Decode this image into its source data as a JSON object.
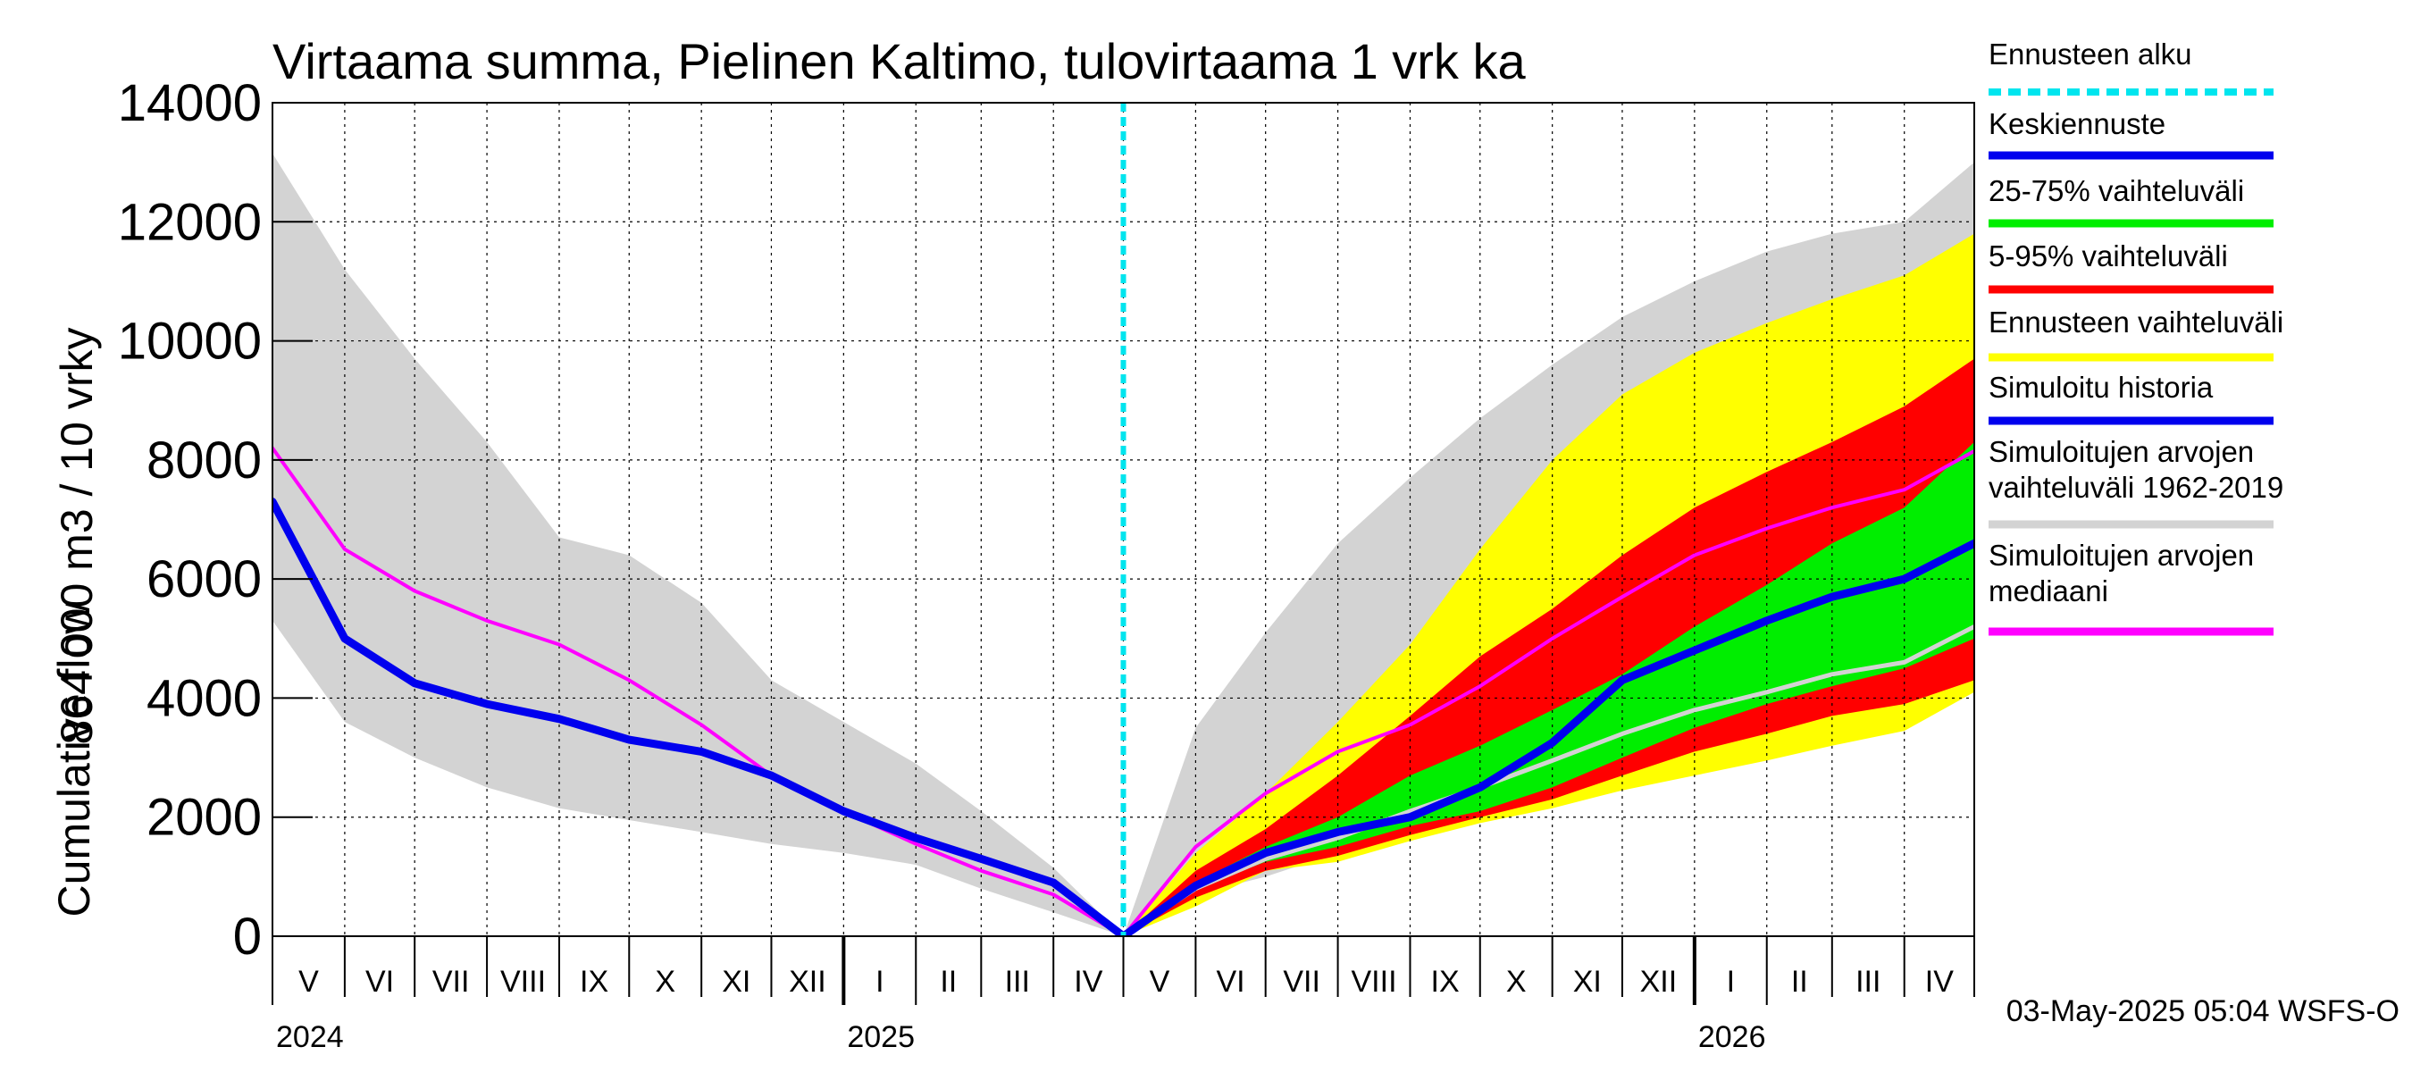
{
  "chart_data": {
    "type": "area",
    "title": "Virtaama summa, Pielinen Kaltimo, tulovirtaama 1 vrk ka",
    "ylabel_line1": "864 000 m3 / 10 vrky",
    "ylabel_line2": "Cumulative flow",
    "ylim": [
      0,
      14000
    ],
    "yticks": [
      0,
      2000,
      4000,
      6000,
      8000,
      10000,
      12000,
      14000
    ],
    "ytick_labels": [
      "0",
      "2000",
      "4000",
      "6000",
      "8000",
      "10000",
      "12000",
      "14000"
    ],
    "x_start": "2024-05-01",
    "x_end": "2026-05-01",
    "forecast_start": "2025-05-01",
    "grid": true,
    "legend_position": "right",
    "months": [
      {
        "label": "V",
        "start": "2024-05-01",
        "end": "2024-06-01"
      },
      {
        "label": "VI",
        "start": "2024-06-01",
        "end": "2024-07-01"
      },
      {
        "label": "VII",
        "start": "2024-07-01",
        "end": "2024-08-01"
      },
      {
        "label": "VIII",
        "start": "2024-08-01",
        "end": "2024-09-01"
      },
      {
        "label": "IX",
        "start": "2024-09-01",
        "end": "2024-10-01"
      },
      {
        "label": "X",
        "start": "2024-10-01",
        "end": "2024-11-01"
      },
      {
        "label": "XI",
        "start": "2024-11-01",
        "end": "2024-12-01"
      },
      {
        "label": "XII",
        "start": "2024-12-01",
        "end": "2025-01-01"
      },
      {
        "label": "I",
        "start": "2025-01-01",
        "end": "2025-02-01"
      },
      {
        "label": "II",
        "start": "2025-02-01",
        "end": "2025-03-01"
      },
      {
        "label": "III",
        "start": "2025-03-01",
        "end": "2025-04-01"
      },
      {
        "label": "IV",
        "start": "2025-04-01",
        "end": "2025-05-01"
      },
      {
        "label": "V",
        "start": "2025-05-01",
        "end": "2025-06-01"
      },
      {
        "label": "VI",
        "start": "2025-06-01",
        "end": "2025-07-01"
      },
      {
        "label": "VII",
        "start": "2025-07-01",
        "end": "2025-08-01"
      },
      {
        "label": "VIII",
        "start": "2025-08-01",
        "end": "2025-09-01"
      },
      {
        "label": "IX",
        "start": "2025-09-01",
        "end": "2025-10-01"
      },
      {
        "label": "X",
        "start": "2025-10-01",
        "end": "2025-11-01"
      },
      {
        "label": "XI",
        "start": "2025-11-01",
        "end": "2025-12-01"
      },
      {
        "label": "XII",
        "start": "2025-12-01",
        "end": "2026-01-01"
      },
      {
        "label": "I",
        "start": "2026-01-01",
        "end": "2026-02-01"
      },
      {
        "label": "II",
        "start": "2026-02-01",
        "end": "2026-03-01"
      },
      {
        "label": "III",
        "start": "2026-03-01",
        "end": "2026-04-01"
      },
      {
        "label": "IV",
        "start": "2026-04-01",
        "end": "2026-05-01"
      }
    ],
    "years": [
      {
        "label": "2024",
        "date": "2024-05-01"
      },
      {
        "label": "2025",
        "date": "2025-01-01"
      },
      {
        "label": "2026",
        "date": "2026-01-01"
      }
    ],
    "bands": [
      {
        "name": "Simuloitujen arvojen vaihteluväli 1962-2019",
        "color": "#d3d3d3",
        "x": [
          "2024-05-01",
          "2024-06-01",
          "2024-07-01",
          "2024-08-01",
          "2024-09-01",
          "2024-10-01",
          "2024-11-01",
          "2024-12-01",
          "2025-01-01",
          "2025-02-01",
          "2025-03-01",
          "2025-04-01",
          "2025-05-01",
          "2025-06-01",
          "2025-07-01",
          "2025-08-01",
          "2025-09-01",
          "2025-10-01",
          "2025-11-01",
          "2025-12-01",
          "2026-01-01",
          "2026-02-01",
          "2026-03-01",
          "2026-04-01",
          "2026-05-01"
        ],
        "upper": [
          13150,
          11200,
          9700,
          8300,
          6700,
          6400,
          5600,
          4300,
          3600,
          2900,
          2100,
          1150,
          0,
          3500,
          5100,
          6600,
          7700,
          8700,
          9600,
          10400,
          11000,
          11500,
          11800,
          12000,
          13000
        ],
        "lower": [
          5300,
          3600,
          3000,
          2500,
          2150,
          1950,
          1750,
          1550,
          1400,
          1200,
          800,
          400,
          0,
          700,
          1000,
          1400,
          1750,
          2100,
          2400,
          2700,
          3000,
          3300,
          3500,
          3800,
          4200
        ]
      },
      {
        "name": "Ennusteen vaihteluväli",
        "color": "#ffff00",
        "x": [
          "2025-05-01",
          "2025-06-01",
          "2025-07-01",
          "2025-08-01",
          "2025-09-01",
          "2025-10-01",
          "2025-11-01",
          "2025-12-01",
          "2026-01-01",
          "2026-02-01",
          "2026-03-01",
          "2026-04-01",
          "2026-05-01"
        ],
        "upper": [
          0,
          1400,
          2400,
          3600,
          4900,
          6500,
          8000,
          9100,
          9800,
          10300,
          10700,
          11100,
          11800
        ],
        "lower": [
          0,
          500,
          1100,
          1250,
          1600,
          1900,
          2150,
          2450,
          2700,
          2950,
          3200,
          3450,
          4100
        ]
      },
      {
        "name": "5-95% vaihteluväli",
        "color": "#ff0000",
        "x": [
          "2025-05-01",
          "2025-06-01",
          "2025-07-01",
          "2025-08-01",
          "2025-09-01",
          "2025-10-01",
          "2025-11-01",
          "2025-12-01",
          "2026-01-01",
          "2026-02-01",
          "2026-03-01",
          "2026-04-01",
          "2026-05-01"
        ],
        "upper": [
          0,
          1100,
          1800,
          2700,
          3700,
          4700,
          5500,
          6400,
          7200,
          7800,
          8300,
          8900,
          9700
        ],
        "lower": [
          0,
          650,
          1100,
          1350,
          1700,
          2000,
          2300,
          2700,
          3100,
          3400,
          3700,
          3900,
          4300
        ]
      },
      {
        "name": "25-75% vaihteluväli",
        "color": "#00ee00",
        "x": [
          "2025-05-01",
          "2025-06-01",
          "2025-07-01",
          "2025-08-01",
          "2025-09-01",
          "2025-10-01",
          "2025-11-01",
          "2025-12-01",
          "2026-01-01",
          "2026-02-01",
          "2026-03-01",
          "2026-04-01",
          "2026-05-01"
        ],
        "upper": [
          0,
          900,
          1500,
          2000,
          2700,
          3200,
          3800,
          4400,
          5200,
          5900,
          6600,
          7200,
          8300
        ],
        "lower": [
          0,
          800,
          1250,
          1500,
          1850,
          2100,
          2500,
          3000,
          3500,
          3900,
          4200,
          4500,
          5000
        ]
      }
    ],
    "series": [
      {
        "name": "Simuloitujen arvojen mediaani",
        "color": "#ff00ff",
        "width": 4,
        "x": [
          "2024-05-01",
          "2024-06-01",
          "2024-07-01",
          "2024-08-01",
          "2024-09-01",
          "2024-10-01",
          "2024-11-01",
          "2024-12-01",
          "2025-01-01",
          "2025-02-01",
          "2025-03-01",
          "2025-04-01",
          "2025-05-01",
          "2025-06-01",
          "2025-07-01",
          "2025-08-01",
          "2025-09-01",
          "2025-10-01",
          "2025-11-01",
          "2025-12-01",
          "2026-01-01",
          "2026-02-01",
          "2026-03-01",
          "2026-04-01",
          "2026-05-01"
        ],
        "values": [
          8200,
          6500,
          5800,
          5300,
          4900,
          4300,
          3550,
          2700,
          2100,
          1550,
          1100,
          700,
          0,
          1500,
          2400,
          3100,
          3550,
          4200,
          5000,
          5700,
          6400,
          6850,
          7200,
          7500,
          8150
        ]
      },
      {
        "name": "Simuloitujen arvojen vaihteluväli 1962-2019 (mediaani)",
        "color": "#d3d3d3",
        "width": 5,
        "x": [
          "2025-05-01",
          "2025-06-01",
          "2025-07-01",
          "2025-08-01",
          "2025-09-01",
          "2025-10-01",
          "2025-11-01",
          "2025-12-01",
          "2026-01-01",
          "2026-02-01",
          "2026-03-01",
          "2026-04-01",
          "2026-05-01"
        ],
        "values": [
          0,
          800,
          1300,
          1650,
          2100,
          2500,
          2950,
          3400,
          3800,
          4100,
          4400,
          4600,
          5200
        ]
      },
      {
        "name": "Simuloitu historia",
        "color": "#0000ee",
        "width": 9,
        "x": [
          "2024-05-01",
          "2024-06-01",
          "2024-07-01",
          "2024-08-01",
          "2024-09-01",
          "2024-10-01",
          "2024-11-01",
          "2024-12-01",
          "2025-01-01",
          "2025-02-01",
          "2025-03-01",
          "2025-04-01",
          "2025-05-01"
        ],
        "values": [
          7300,
          5000,
          4250,
          3900,
          3650,
          3300,
          3100,
          2700,
          2100,
          1650,
          1300,
          900,
          0
        ]
      },
      {
        "name": "Keskiennuste",
        "color": "#0000ee",
        "width": 9,
        "x": [
          "2025-05-01",
          "2025-06-01",
          "2025-07-01",
          "2025-08-01",
          "2025-09-01",
          "2025-10-01",
          "2025-11-01",
          "2025-12-01",
          "2026-01-01",
          "2026-02-01",
          "2026-03-01",
          "2026-04-01",
          "2026-05-01"
        ],
        "values": [
          0,
          850,
          1400,
          1750,
          2000,
          2500,
          3250,
          4300,
          4800,
          5300,
          5700,
          6000,
          6600
        ]
      }
    ],
    "legend": [
      {
        "label": "Ennusteen alku",
        "color": "#00e5ee",
        "style": "dashed"
      },
      {
        "label": "Keskiennuste",
        "color": "#0000ee",
        "style": "solid"
      },
      {
        "label": "25-75% vaihteluväli",
        "color": "#00ee00",
        "style": "solid"
      },
      {
        "label": "5-95% vaihteluväli",
        "color": "#ff0000",
        "style": "solid"
      },
      {
        "label": "Ennusteen vaihteluväli",
        "color": "#ffff00",
        "style": "solid"
      },
      {
        "label": "Simuloitu historia",
        "color": "#0000ee",
        "style": "solid"
      },
      {
        "label": "Simuloitujen arvojen\nvaihteluväli 1962-2019",
        "color": "#d3d3d3",
        "style": "solid"
      },
      {
        "label": "Simuloitujen arvojen\nmediaani",
        "color": "#ff00ff",
        "style": "solid"
      }
    ],
    "forecast_line_color": "#00e5ee",
    "footer": "03-May-2025 05:04 WSFS-O"
  }
}
